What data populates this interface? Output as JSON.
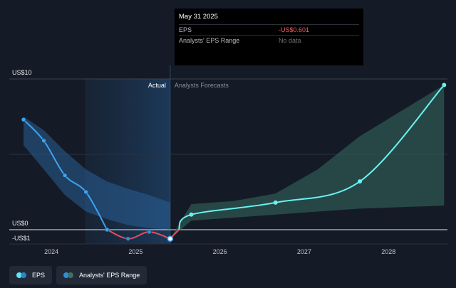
{
  "tooltip": {
    "date": "May 31 2025",
    "eps_label": "EPS",
    "eps_value": "-US$0.601",
    "range_label": "Analysts' EPS Range",
    "range_value": "No data"
  },
  "section_labels": {
    "actual": "Actual",
    "forecast": "Analysts Forecasts"
  },
  "legend": [
    {
      "label": "EPS",
      "colors": [
        "#5ee6f5",
        "#2d8fd6"
      ]
    },
    {
      "label": "Analysts' EPS Range",
      "colors": [
        "#2d8fd6",
        "#3b7168"
      ]
    }
  ],
  "colors": {
    "eps_line": "#3ba4f0",
    "eps_negative": "#e05060",
    "forecast_line": "#69f2f0",
    "actual_band": "#2a5f96",
    "forecast_band": "#2f5a55"
  },
  "chart_data": {
    "type": "line",
    "y_tick_labels": [
      "US$10",
      "US$0",
      "-US$1"
    ],
    "ylim": [
      -1,
      10
    ],
    "x_tick_labels": [
      "2024",
      "2025",
      "2026",
      "2027",
      "2028"
    ],
    "xlim": [
      2023.5,
      2028.7
    ],
    "highlight_region": [
      2024.4,
      2025.41
    ],
    "actual_eps": {
      "x": [
        2023.67,
        2023.91,
        2024.16,
        2024.41,
        2024.66,
        2024.91,
        2025.16,
        2025.41
      ],
      "y": [
        7.3,
        5.9,
        3.6,
        2.5,
        0.0,
        -0.6,
        -0.15,
        -0.6
      ]
    },
    "actual_range": {
      "x": [
        2023.67,
        2023.91,
        2024.16,
        2024.41,
        2024.66,
        2024.91,
        2025.16,
        2025.41
      ],
      "upper": [
        7.5,
        6.6,
        5.2,
        4.0,
        3.2,
        2.7,
        2.3,
        1.8
      ],
      "lower": [
        5.6,
        4.0,
        2.3,
        1.2,
        0.7,
        0.3,
        0.1,
        0.0
      ]
    },
    "forecast_eps": {
      "x": [
        2025.41,
        2025.66,
        2026.66,
        2027.66,
        2028.66
      ],
      "y": [
        -0.6,
        1.0,
        1.8,
        3.2,
        9.6
      ]
    },
    "forecast_range": {
      "x": [
        2025.41,
        2025.66,
        2026.16,
        2026.66,
        2027.16,
        2027.66,
        2028.16,
        2028.66
      ],
      "upper": [
        -0.6,
        1.7,
        1.9,
        2.4,
        4.0,
        6.2,
        7.9,
        9.6
      ],
      "lower": [
        -0.6,
        0.6,
        0.8,
        1.0,
        1.2,
        1.4,
        1.5,
        1.6
      ]
    }
  }
}
